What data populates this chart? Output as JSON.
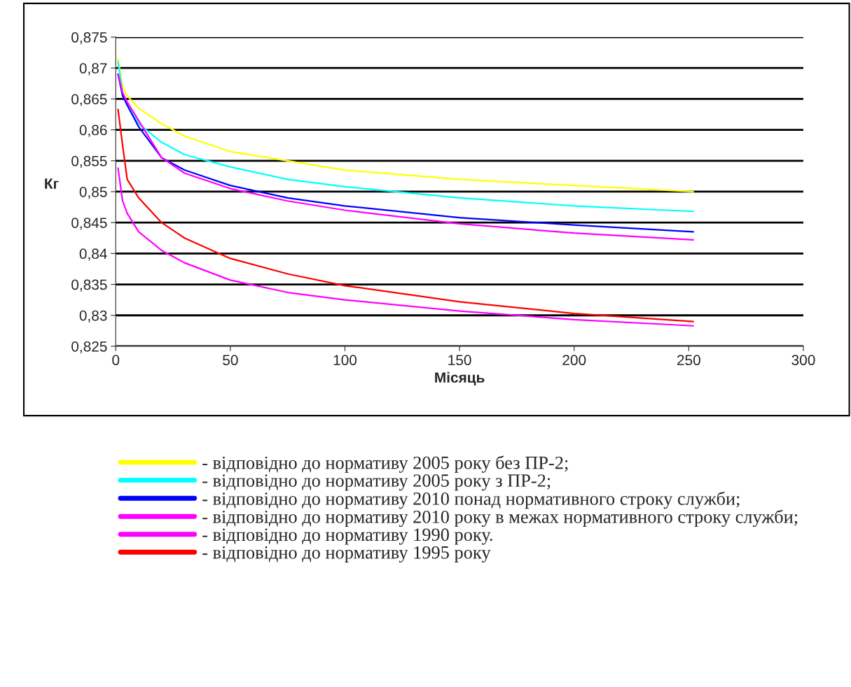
{
  "chart_data": {
    "type": "line",
    "xlabel": "Місяць",
    "ylabel": "Кг",
    "xlim": [
      0,
      300
    ],
    "xticks": [
      0,
      50,
      100,
      150,
      200,
      250,
      300
    ],
    "ylim": [
      0.825,
      0.875
    ],
    "yticks": [
      {
        "value": 0.825,
        "label": "0,825"
      },
      {
        "value": 0.83,
        "label": "0,83"
      },
      {
        "value": 0.835,
        "label": "0,835"
      },
      {
        "value": 0.84,
        "label": "0,84"
      },
      {
        "value": 0.845,
        "label": "0,845"
      },
      {
        "value": 0.85,
        "label": "0,85"
      },
      {
        "value": 0.855,
        "label": "0,855"
      },
      {
        "value": 0.86,
        "label": "0,86"
      },
      {
        "value": 0.865,
        "label": "0,865"
      },
      {
        "value": 0.87,
        "label": "0,87"
      },
      {
        "value": 0.875,
        "label": "0,875"
      }
    ],
    "grid": "y",
    "legend": "bottom",
    "line_style": "solid",
    "marker": "none",
    "x": [
      1,
      3,
      5,
      10,
      20,
      30,
      50,
      75,
      100,
      150,
      200,
      252
    ],
    "series": [
      {
        "name": "- відповідно до нормативу 2005 року без ПР-2;",
        "color": "#ffff00",
        "values": [
          0.8715,
          0.867,
          0.8655,
          0.8635,
          0.861,
          0.859,
          0.8565,
          0.855,
          0.8535,
          0.852,
          0.851,
          0.85
        ]
      },
      {
        "name": "- відповідно до нормативу 2005 року з ПР-2;",
        "color": "#00ffff",
        "values": [
          0.871,
          0.866,
          0.864,
          0.861,
          0.858,
          0.856,
          0.854,
          0.852,
          0.8508,
          0.849,
          0.8477,
          0.8468
        ]
      },
      {
        "name": "- відповідно до нормативу 2010 понад нормативного строку служби;",
        "color": "#0000ff",
        "values": [
          0.869,
          0.8655,
          0.864,
          0.8605,
          0.8555,
          0.8535,
          0.851,
          0.849,
          0.8477,
          0.8458,
          0.8446,
          0.8435
        ]
      },
      {
        "name": "- відповідно до нормативу 2010 року в межах нормативного строку служби;",
        "color": "#ff00ff",
        "values": [
          0.869,
          0.866,
          0.8645,
          0.8615,
          0.8555,
          0.853,
          0.8505,
          0.8485,
          0.847,
          0.8448,
          0.8433,
          0.8422
        ]
      },
      {
        "name": "- відповідно до нормативу 1990 року.",
        "color": "#ff00ff",
        "values": [
          0.8538,
          0.8485,
          0.8465,
          0.8435,
          0.8405,
          0.8385,
          0.8357,
          0.8337,
          0.8325,
          0.8307,
          0.8293,
          0.8283
        ]
      },
      {
        "name": "- відповідно до нормативу 1995 року",
        "color": "#ff0000",
        "values": [
          0.8633,
          0.8575,
          0.852,
          0.849,
          0.845,
          0.8425,
          0.8392,
          0.8367,
          0.8348,
          0.8322,
          0.8303,
          0.829
        ]
      }
    ]
  }
}
